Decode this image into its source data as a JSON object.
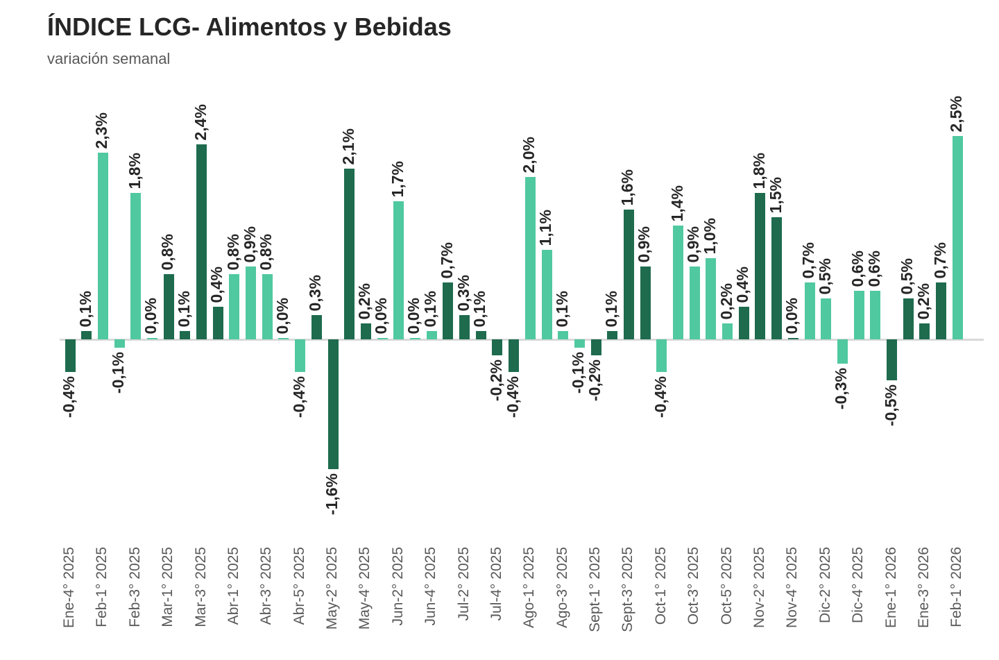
{
  "chart_data": {
    "type": "bar",
    "title": "ÍNDICE LCG- Alimentos y Bebidas",
    "subtitle": "variación semanal",
    "unit": "%",
    "decimal_separator": ",",
    "ylim": [
      -1.8,
      2.7
    ],
    "grid": false,
    "legend": "none",
    "x_tick_rotation": 90,
    "value_label_rotation": 90,
    "bar_colors": {
      "dark": "#1e6b4e",
      "light": "#50c8a0"
    },
    "axis_line_color": "#d9d9d9",
    "text_colors": {
      "title": "#262626",
      "subtitle": "#595959",
      "value_labels": "#262626",
      "tick_labels": "#595959"
    },
    "color_pattern": "months alternate dark/light shading",
    "bars": [
      {
        "week": "Ene-4° 2025",
        "value": -0.4,
        "display": "-0,4%",
        "shade": "dark"
      },
      {
        "week": "",
        "value": 0.1,
        "display": "0,1%",
        "shade": "dark"
      },
      {
        "week": "Feb-1° 2025",
        "value": 2.3,
        "display": "2,3%",
        "shade": "light"
      },
      {
        "week": "",
        "value": -0.1,
        "display": "-0,1%",
        "shade": "light"
      },
      {
        "week": "Feb-3° 2025",
        "value": 1.8,
        "display": "1,8%",
        "shade": "light"
      },
      {
        "week": "",
        "value": 0.0,
        "display": "0,0%",
        "shade": "light"
      },
      {
        "week": "Mar-1° 2025",
        "value": 0.8,
        "display": "0,8%",
        "shade": "dark"
      },
      {
        "week": "",
        "value": 0.1,
        "display": "0,1%",
        "shade": "dark"
      },
      {
        "week": "Mar-3° 2025",
        "value": 2.4,
        "display": "2,4%",
        "shade": "dark"
      },
      {
        "week": "",
        "value": 0.4,
        "display": "0,4%",
        "shade": "dark"
      },
      {
        "week": "Abr-1° 2025",
        "value": 0.8,
        "display": "0,8%",
        "shade": "light"
      },
      {
        "week": "",
        "value": 0.9,
        "display": "0,9%",
        "shade": "light"
      },
      {
        "week": "Abr-3° 2025",
        "value": 0.8,
        "display": "0,8%",
        "shade": "light"
      },
      {
        "week": "",
        "value": 0.0,
        "display": "0,0%",
        "shade": "light"
      },
      {
        "week": "Abr-5° 2025",
        "value": -0.4,
        "display": "-0,4%",
        "shade": "light"
      },
      {
        "week": "",
        "value": 0.3,
        "display": "0,3%",
        "shade": "dark"
      },
      {
        "week": "May-2° 2025",
        "value": -1.6,
        "display": "-1,6%",
        "shade": "dark"
      },
      {
        "week": "",
        "value": 2.1,
        "display": "2,1%",
        "shade": "dark"
      },
      {
        "week": "May-4° 2025",
        "value": 0.2,
        "display": "0,2%",
        "shade": "dark"
      },
      {
        "week": "",
        "value": 0.0,
        "display": "0,0%",
        "shade": "light"
      },
      {
        "week": "Jun-2° 2025",
        "value": 1.7,
        "display": "1,7%",
        "shade": "light"
      },
      {
        "week": "",
        "value": 0.0,
        "display": "0,0%",
        "shade": "light"
      },
      {
        "week": "Jun-4° 2025",
        "value": 0.1,
        "display": "0,1%",
        "shade": "light"
      },
      {
        "week": "",
        "value": 0.7,
        "display": "0,7%",
        "shade": "dark"
      },
      {
        "week": "Jul-2° 2025",
        "value": 0.3,
        "display": "0,3%",
        "shade": "dark"
      },
      {
        "week": "",
        "value": 0.1,
        "display": "0,1%",
        "shade": "dark"
      },
      {
        "week": "Jul-4° 2025",
        "value": -0.2,
        "display": "-0,2%",
        "shade": "dark"
      },
      {
        "week": "",
        "value": -0.4,
        "display": "-0,4%",
        "shade": "dark"
      },
      {
        "week": "Ago-1° 2025",
        "value": 2.0,
        "display": "2,0%",
        "shade": "light"
      },
      {
        "week": "",
        "value": 1.1,
        "display": "1,1%",
        "shade": "light"
      },
      {
        "week": "Ago-3° 2025",
        "value": 0.1,
        "display": "0,1%",
        "shade": "light"
      },
      {
        "week": "",
        "value": -0.1,
        "display": "-0,1%",
        "shade": "light"
      },
      {
        "week": "Sept-1° 2025",
        "value": -0.2,
        "display": "-0,2%",
        "shade": "dark"
      },
      {
        "week": "",
        "value": 0.1,
        "display": "0,1%",
        "shade": "dark"
      },
      {
        "week": "Sept-3° 2025",
        "value": 1.6,
        "display": "1,6%",
        "shade": "dark"
      },
      {
        "week": "",
        "value": 0.9,
        "display": "0,9%",
        "shade": "dark"
      },
      {
        "week": "Oct-1° 2025",
        "value": -0.4,
        "display": "-0,4%",
        "shade": "light"
      },
      {
        "week": "",
        "value": 1.4,
        "display": "1,4%",
        "shade": "light"
      },
      {
        "week": "Oct-3° 2025",
        "value": 0.9,
        "display": "0,9%",
        "shade": "light"
      },
      {
        "week": "",
        "value": 1.0,
        "display": "1,0%",
        "shade": "light"
      },
      {
        "week": "Oct-5° 2025",
        "value": 0.2,
        "display": "0,2%",
        "shade": "light"
      },
      {
        "week": "",
        "value": 0.4,
        "display": "0,4%",
        "shade": "dark"
      },
      {
        "week": "Nov-2° 2025",
        "value": 1.8,
        "display": "1,8%",
        "shade": "dark"
      },
      {
        "week": "",
        "value": 1.5,
        "display": "1,5%",
        "shade": "dark"
      },
      {
        "week": "Nov-4° 2025",
        "value": 0.0,
        "display": "0,0%",
        "shade": "dark"
      },
      {
        "week": "",
        "value": 0.7,
        "display": "0,7%",
        "shade": "light"
      },
      {
        "week": "Dic-2° 2025",
        "value": 0.5,
        "display": "0,5%",
        "shade": "light"
      },
      {
        "week": "",
        "value": -0.3,
        "display": "-0,3%",
        "shade": "light"
      },
      {
        "week": "Dic-4° 2025",
        "value": 0.6,
        "display": "0,6%",
        "shade": "light"
      },
      {
        "week": "",
        "value": 0.6,
        "display": "0,6%",
        "shade": "light"
      },
      {
        "week": "Ene-1° 2026",
        "value": -0.5,
        "display": "-0,5%",
        "shade": "dark"
      },
      {
        "week": "",
        "value": 0.5,
        "display": "0,5%",
        "shade": "dark"
      },
      {
        "week": "Ene-3° 2026",
        "value": 0.2,
        "display": "0,2%",
        "shade": "dark"
      },
      {
        "week": "",
        "value": 0.7,
        "display": "0,7%",
        "shade": "dark"
      },
      {
        "week": "Feb-1° 2026",
        "value": 2.5,
        "display": "2,5%",
        "shade": "light"
      }
    ],
    "x_tick_labels": [
      "Ene-4° 2025",
      "Feb-1° 2025",
      "Feb-3° 2025",
      "Mar-1° 2025",
      "Mar-3° 2025",
      "Abr-1° 2025",
      "Abr-3° 2025",
      "Abr-5° 2025",
      "May-2° 2025",
      "May-4° 2025",
      "Jun-2° 2025",
      "Jun-4° 2025",
      "Jul-2° 2025",
      "Jul-4° 2025",
      "Ago-1° 2025",
      "Ago-3° 2025",
      "Sept-1° 2025",
      "Sept-3° 2025",
      "Oct-1° 2025",
      "Oct-3° 2025",
      "Oct-5° 2025",
      "Nov-2° 2025",
      "Nov-4° 2025",
      "Dic-2° 2025",
      "Dic-4° 2025",
      "Ene-1° 2026",
      "Ene-3° 2026",
      "Feb-1° 2026"
    ]
  }
}
